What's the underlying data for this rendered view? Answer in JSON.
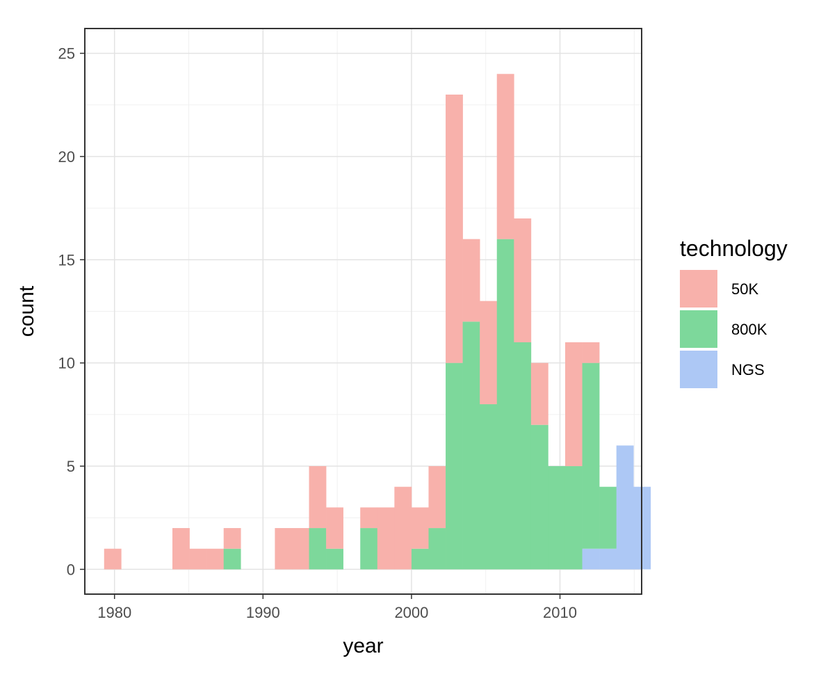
{
  "chart_data": {
    "type": "bar",
    "subtype": "stacked-histogram",
    "xlabel": "year",
    "ylabel": "count",
    "xlim": [
      1978,
      2015.5
    ],
    "ylim": [
      -1.2,
      26.2
    ],
    "xticks": [
      1980,
      1990,
      2000,
      2010
    ],
    "yticks": [
      0,
      5,
      10,
      15,
      20,
      25
    ],
    "grid": true,
    "bin_width": 1.15,
    "bin_start": 1979.3,
    "legend": {
      "title": "technology",
      "position": "right",
      "entries": [
        "50K",
        "800K",
        "NGS"
      ]
    },
    "colors": {
      "50K": "#f8b1ab",
      "800K": "#7dd89b",
      "NGS": "#adc8f5"
    },
    "series": [
      {
        "name": "50K",
        "values": [
          1,
          0,
          0,
          0,
          2,
          1,
          1,
          1,
          0,
          0,
          2,
          2,
          3,
          2,
          0,
          1,
          3,
          4,
          2,
          3,
          13,
          4,
          5,
          8,
          6,
          3,
          0,
          6,
          1,
          0,
          0,
          0
        ]
      },
      {
        "name": "800K",
        "values": [
          0,
          0,
          0,
          0,
          0,
          0,
          0,
          1,
          0,
          0,
          0,
          0,
          2,
          1,
          0,
          2,
          0,
          0,
          1,
          2,
          10,
          12,
          8,
          16,
          11,
          7,
          5,
          5,
          9,
          3,
          0,
          0
        ]
      },
      {
        "name": "NGS",
        "values": [
          0,
          0,
          0,
          0,
          0,
          0,
          0,
          0,
          0,
          0,
          0,
          0,
          0,
          0,
          0,
          0,
          0,
          0,
          0,
          0,
          0,
          0,
          0,
          0,
          0,
          0,
          0,
          0,
          1,
          1,
          6,
          4
        ]
      }
    ]
  }
}
